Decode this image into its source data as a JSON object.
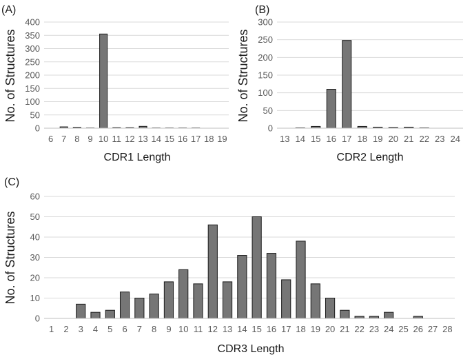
{
  "chart_data": [
    {
      "type": "bar",
      "panel_label": "(A)",
      "categories": [
        "6",
        "7",
        "8",
        "9",
        "10",
        "11",
        "12",
        "13",
        "14",
        "15",
        "16",
        "17",
        "18",
        "19"
      ],
      "values": [
        0,
        5,
        3,
        1,
        355,
        2,
        2,
        7,
        1,
        1,
        1,
        1,
        0,
        0
      ],
      "xlabel": "CDR1 Length",
      "ylabel": "No. of Structures",
      "ylim": [
        0,
        400
      ],
      "yticks": [
        0,
        50,
        100,
        150,
        200,
        250,
        300,
        350,
        400
      ],
      "grid": true
    },
    {
      "type": "bar",
      "panel_label": "(B)",
      "categories": [
        "13",
        "14",
        "15",
        "16",
        "17",
        "18",
        "19",
        "20",
        "21",
        "22",
        "23",
        "24"
      ],
      "values": [
        0,
        1,
        5,
        110,
        248,
        5,
        3,
        2,
        3,
        1,
        0,
        0
      ],
      "xlabel": "CDR2 Length",
      "ylabel": "No. of Structures",
      "ylim": [
        0,
        300
      ],
      "yticks": [
        0,
        50,
        100,
        150,
        200,
        250,
        300
      ],
      "grid": true
    },
    {
      "type": "bar",
      "panel_label": "(C)",
      "categories": [
        "1",
        "2",
        "3",
        "4",
        "5",
        "6",
        "7",
        "8",
        "9",
        "10",
        "11",
        "12",
        "13",
        "14",
        "15",
        "16",
        "17",
        "18",
        "19",
        "20",
        "21",
        "22",
        "23",
        "24",
        "25",
        "26",
        "27",
        "28"
      ],
      "values": [
        0,
        0,
        7,
        3,
        4,
        13,
        10,
        12,
        18,
        24,
        17,
        46,
        18,
        31,
        50,
        32,
        19,
        38,
        17,
        10,
        4,
        1,
        1,
        3,
        0,
        1,
        0,
        0
      ],
      "xlabel": "CDR3 Length",
      "ylabel": "No. of Structures",
      "ylim": [
        0,
        60
      ],
      "yticks": [
        0,
        10,
        20,
        30,
        40,
        50,
        60
      ],
      "grid": true
    }
  ]
}
